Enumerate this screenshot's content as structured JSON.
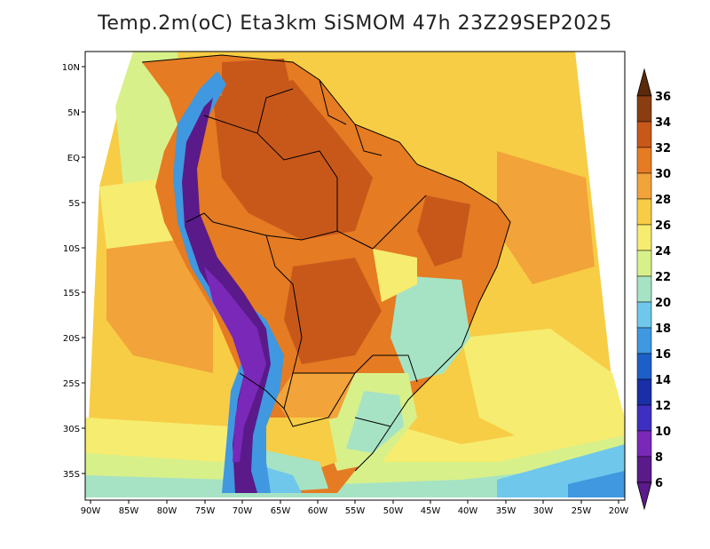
{
  "title": "Temp.2m(oC) Eta3km SiSMOM 47h 23Z29SEP2025",
  "lat_labels": [
    "10N",
    "5N",
    "EQ",
    "5S",
    "10S",
    "15S",
    "20S",
    "25S",
    "30S",
    "35S"
  ],
  "lon_labels": [
    "90W",
    "85W",
    "80W",
    "75W",
    "70W",
    "65W",
    "60W",
    "55W",
    "50W",
    "45W",
    "40W",
    "35W",
    "30W",
    "25W",
    "20W"
  ],
  "colorbar": {
    "labels": [
      "36",
      "34",
      "32",
      "30",
      "28",
      "26",
      "24",
      "22",
      "20",
      "18",
      "16",
      "14",
      "12",
      "10",
      "8",
      "6"
    ],
    "colors": [
      "#5a2a0a",
      "#8a3d10",
      "#c8581a",
      "#e57b22",
      "#f2a33a",
      "#f7cd45",
      "#f6ec70",
      "#d8f08a",
      "#a6e3c4",
      "#6fc7ec",
      "#3f98e0",
      "#1d5fc8",
      "#1a2ea8",
      "#3f2fc0",
      "#7a28b8",
      "#5a1a8a"
    ],
    "top_color": "#5a2a0a",
    "bottom_color": "#5a1a8a"
  },
  "field_colors": {
    "ocean_warm": "#f2a33a",
    "ocean_mid": "#f7cd45",
    "ocean_cool": "#f6ec70",
    "ocean_cold": "#a6e3c4",
    "land_hot": "#e57b22",
    "land_veryhot": "#c8581a",
    "andes_cold": "#5a1a8a",
    "andes_blue": "#1d5fc8",
    "south_cool": "#6fc7ec"
  }
}
